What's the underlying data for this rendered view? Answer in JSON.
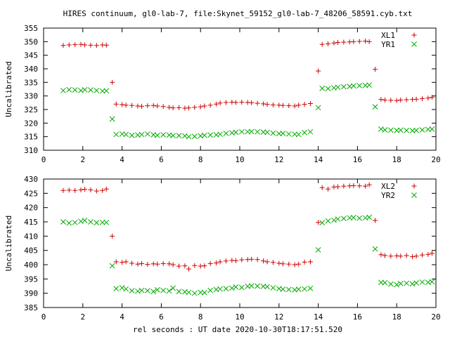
{
  "title": "HIRES continuum, gl0-lab-7, file:Skynet_59152_gl0-lab-7_48206_58591.cyb.txt",
  "xlabel": "rel seconds : UT date 2020-10-30T18:17:51.520",
  "chart_data": [
    {
      "type": "scatter",
      "ylabel": "Uncalibrated",
      "xlim": [
        0,
        20
      ],
      "ylim": [
        310,
        355
      ],
      "xticks": [
        0,
        2,
        4,
        6,
        8,
        10,
        12,
        14,
        16,
        18,
        20
      ],
      "yticks": [
        310,
        315,
        320,
        325,
        330,
        335,
        340,
        345,
        350,
        355
      ],
      "legend": "top-right",
      "series": [
        {
          "name": "XL1",
          "marker": "plus",
          "color": "#cc0000",
          "x": [
            1.0,
            1.3,
            1.6,
            1.9,
            2.1,
            2.4,
            2.7,
            3.0,
            3.2,
            3.5,
            3.7,
            4.0,
            4.2,
            4.5,
            4.8,
            5.0,
            5.3,
            5.6,
            5.8,
            6.1,
            6.4,
            6.6,
            6.9,
            7.2,
            7.4,
            7.7,
            8.0,
            8.2,
            8.5,
            8.8,
            9.0,
            9.3,
            9.6,
            9.8,
            10.1,
            10.4,
            10.6,
            10.9,
            11.2,
            11.4,
            11.7,
            12.0,
            12.2,
            12.5,
            12.8,
            13.0,
            13.3,
            13.6,
            14.0,
            14.2,
            14.5,
            14.8,
            15.0,
            15.3,
            15.6,
            15.8,
            16.1,
            16.4,
            16.6,
            16.9,
            17.2,
            17.4,
            17.7,
            18.0,
            18.2,
            18.5,
            18.8,
            19.0,
            19.3,
            19.6,
            19.8
          ],
          "y": [
            348.6,
            348.8,
            348.9,
            349.0,
            348.8,
            348.7,
            348.6,
            348.8,
            348.7,
            335.0,
            327.0,
            326.8,
            326.6,
            326.5,
            326.3,
            326.2,
            326.4,
            326.5,
            326.3,
            326.1,
            325.8,
            325.6,
            325.7,
            325.5,
            325.6,
            325.8,
            326.0,
            326.3,
            326.6,
            327.0,
            327.4,
            327.6,
            327.7,
            327.6,
            327.7,
            327.6,
            327.5,
            327.3,
            327.1,
            326.9,
            326.7,
            326.6,
            326.5,
            326.4,
            326.3,
            326.6,
            326.9,
            327.2,
            339.2,
            349.0,
            349.2,
            349.5,
            349.7,
            349.8,
            349.9,
            350.0,
            350.1,
            350.2,
            350.0,
            339.8,
            328.7,
            328.5,
            328.4,
            328.3,
            328.5,
            328.6,
            328.7,
            328.8,
            329.0,
            329.2,
            329.5
          ]
        },
        {
          "name": "YR1",
          "marker": "cross",
          "color": "#00aa00",
          "x": [
            1.0,
            1.3,
            1.6,
            1.9,
            2.1,
            2.4,
            2.7,
            3.0,
            3.2,
            3.5,
            3.7,
            4.0,
            4.2,
            4.5,
            4.8,
            5.0,
            5.3,
            5.6,
            5.8,
            6.1,
            6.4,
            6.6,
            6.9,
            7.2,
            7.4,
            7.7,
            8.0,
            8.2,
            8.5,
            8.8,
            9.0,
            9.3,
            9.6,
            9.8,
            10.1,
            10.4,
            10.6,
            10.9,
            11.2,
            11.4,
            11.7,
            12.0,
            12.2,
            12.5,
            12.8,
            13.0,
            13.3,
            13.6,
            14.0,
            14.2,
            14.5,
            14.8,
            15.0,
            15.3,
            15.6,
            15.8,
            16.1,
            16.4,
            16.6,
            16.9,
            17.2,
            17.4,
            17.7,
            18.0,
            18.2,
            18.5,
            18.8,
            19.0,
            19.3,
            19.6,
            19.8
          ],
          "y": [
            332.0,
            332.3,
            332.2,
            332.0,
            332.3,
            332.2,
            332.0,
            331.8,
            331.9,
            321.5,
            315.8,
            316.0,
            315.8,
            315.5,
            315.6,
            315.8,
            316.0,
            315.7,
            315.5,
            315.7,
            315.6,
            315.4,
            315.4,
            315.3,
            315.0,
            315.1,
            315.3,
            315.5,
            315.6,
            315.7,
            315.9,
            316.2,
            316.4,
            316.6,
            316.8,
            316.8,
            316.9,
            316.8,
            316.7,
            316.6,
            316.3,
            316.1,
            316.2,
            316.0,
            315.9,
            315.8,
            316.5,
            316.8,
            325.7,
            332.8,
            332.7,
            333.0,
            333.2,
            333.4,
            333.5,
            333.7,
            333.8,
            333.9,
            334.0,
            326.0,
            317.8,
            317.5,
            317.4,
            317.3,
            317.4,
            317.3,
            317.2,
            317.3,
            317.5,
            317.7,
            317.8
          ]
        }
      ]
    },
    {
      "type": "scatter",
      "ylabel": "Uncalibrated",
      "xlim": [
        0,
        20
      ],
      "ylim": [
        385,
        430
      ],
      "xticks": [
        0,
        2,
        4,
        6,
        8,
        10,
        12,
        14,
        16,
        18,
        20
      ],
      "yticks": [
        385,
        390,
        395,
        400,
        405,
        410,
        415,
        420,
        425,
        430
      ],
      "legend": "top-right",
      "series": [
        {
          "name": "XL2",
          "marker": "plus",
          "color": "#cc0000",
          "x": [
            1.0,
            1.3,
            1.6,
            1.9,
            2.1,
            2.4,
            2.7,
            3.0,
            3.2,
            3.5,
            3.7,
            4.0,
            4.2,
            4.5,
            4.8,
            5.0,
            5.3,
            5.6,
            5.8,
            6.1,
            6.4,
            6.6,
            6.9,
            7.2,
            7.4,
            7.7,
            8.0,
            8.2,
            8.5,
            8.8,
            9.0,
            9.3,
            9.6,
            9.8,
            10.1,
            10.4,
            10.6,
            10.9,
            11.2,
            11.4,
            11.7,
            12.0,
            12.2,
            12.5,
            12.8,
            13.0,
            13.3,
            13.6,
            14.0,
            14.2,
            14.5,
            14.8,
            15.0,
            15.3,
            15.6,
            15.8,
            16.1,
            16.4,
            16.6,
            16.9,
            17.2,
            17.4,
            17.7,
            18.0,
            18.2,
            18.5,
            18.8,
            19.0,
            19.3,
            19.6,
            19.8
          ],
          "y": [
            426.0,
            426.1,
            426.0,
            426.2,
            426.4,
            426.2,
            425.8,
            426.0,
            426.5,
            410.0,
            401.0,
            400.8,
            401.0,
            400.5,
            400.2,
            400.4,
            400.1,
            400.3,
            400.2,
            400.4,
            400.3,
            400.0,
            399.5,
            399.6,
            398.5,
            399.7,
            399.5,
            399.6,
            400.4,
            400.6,
            401.0,
            401.3,
            401.5,
            401.4,
            401.7,
            401.8,
            401.9,
            401.8,
            401.3,
            401.0,
            400.8,
            400.5,
            400.3,
            400.2,
            400.0,
            400.2,
            400.9,
            401.0,
            414.8,
            427.0,
            426.5,
            427.2,
            427.3,
            427.5,
            427.6,
            427.7,
            427.6,
            427.5,
            428.0,
            415.5,
            403.5,
            403.2,
            403.0,
            403.1,
            403.0,
            403.2,
            402.8,
            403.0,
            403.4,
            403.6,
            404.0
          ]
        },
        {
          "name": "YR2",
          "marker": "cross",
          "color": "#00aa00",
          "x": [
            1.0,
            1.3,
            1.6,
            1.9,
            2.1,
            2.4,
            2.7,
            3.0,
            3.2,
            3.5,
            3.7,
            4.0,
            4.2,
            4.5,
            4.8,
            5.0,
            5.3,
            5.6,
            5.8,
            6.1,
            6.4,
            6.6,
            6.9,
            7.2,
            7.4,
            7.7,
            8.0,
            8.2,
            8.5,
            8.8,
            9.0,
            9.3,
            9.6,
            9.8,
            10.1,
            10.4,
            10.6,
            10.9,
            11.2,
            11.4,
            11.7,
            12.0,
            12.2,
            12.5,
            12.8,
            13.0,
            13.3,
            13.6,
            14.0,
            14.2,
            14.5,
            14.8,
            15.0,
            15.3,
            15.6,
            15.8,
            16.1,
            16.4,
            16.6,
            16.9,
            17.2,
            17.4,
            17.7,
            18.0,
            18.2,
            18.5,
            18.8,
            19.0,
            19.3,
            19.6,
            19.8
          ],
          "y": [
            415.0,
            414.6,
            414.8,
            415.2,
            415.5,
            415.0,
            414.7,
            414.8,
            414.8,
            399.6,
            391.6,
            391.9,
            391.5,
            390.9,
            390.7,
            391.0,
            390.9,
            390.6,
            391.2,
            391.0,
            390.8,
            391.8,
            390.6,
            390.5,
            390.3,
            390.0,
            390.3,
            390.2,
            391.0,
            391.3,
            391.5,
            391.6,
            391.8,
            392.2,
            392.0,
            392.4,
            392.6,
            392.5,
            392.4,
            392.3,
            391.9,
            391.6,
            391.4,
            391.3,
            391.2,
            391.4,
            391.5,
            391.7,
            405.2,
            414.7,
            415.3,
            415.6,
            416.0,
            416.2,
            416.4,
            416.5,
            416.3,
            416.4,
            416.6,
            405.5,
            393.8,
            393.7,
            393.2,
            393.0,
            393.4,
            393.5,
            393.3,
            393.6,
            393.9,
            393.8,
            394.0
          ]
        }
      ]
    }
  ]
}
